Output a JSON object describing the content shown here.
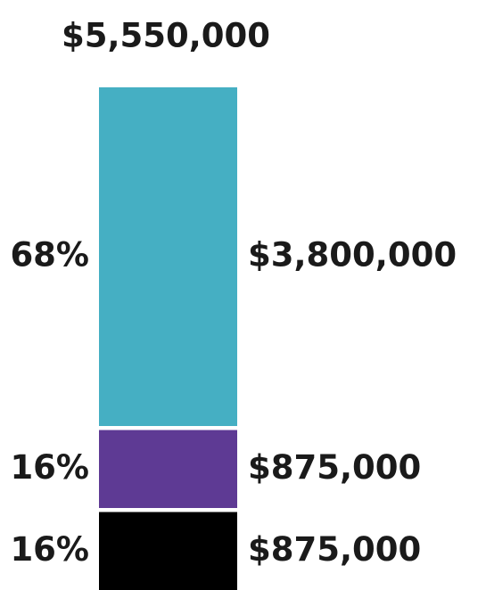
{
  "chart_data": {
    "type": "stacked-bar",
    "title": "$5,550,000",
    "values": [
      3800000,
      875000,
      875000
    ],
    "value_labels": [
      "$3,800,000",
      "$875,000",
      "$875,000"
    ],
    "percent_labels": [
      "68%",
      "16%",
      "16%"
    ],
    "colors": [
      "#45afc3",
      "#5e3a94",
      "#000000"
    ]
  }
}
